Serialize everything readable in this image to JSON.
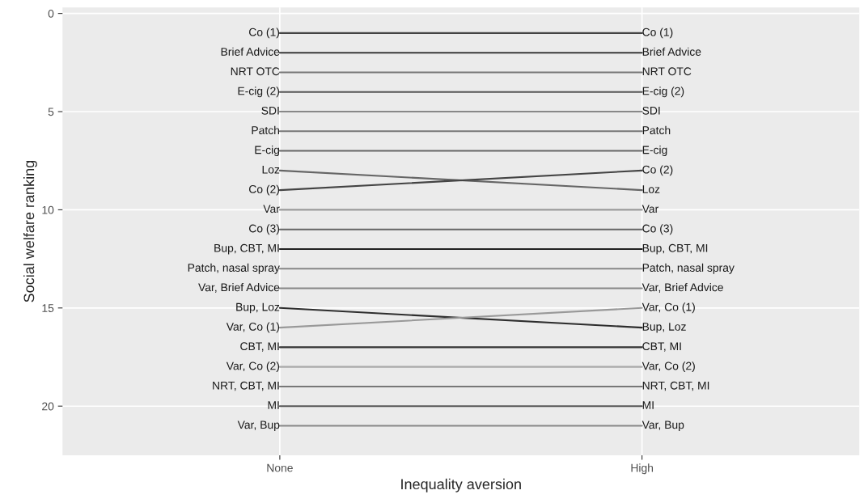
{
  "chart_data": {
    "type": "line",
    "xlabel": "Inequality aversion",
    "ylabel": "Social welfare ranking",
    "categories": [
      "None",
      "High"
    ],
    "ylim": [
      22.5,
      -0.3
    ],
    "yticks": [
      0,
      5,
      10,
      15,
      20
    ],
    "grid": true,
    "legend": false,
    "series": [
      {
        "name": "Co (1)",
        "color": "#444444",
        "values": [
          1,
          1
        ]
      },
      {
        "name": "Brief Advice",
        "color": "#3a3a3a",
        "values": [
          2,
          2
        ]
      },
      {
        "name": "NRT OTC",
        "color": "#777777",
        "values": [
          3,
          3
        ]
      },
      {
        "name": "E-cig (2)",
        "color": "#555555",
        "values": [
          4,
          4
        ]
      },
      {
        "name": "SDI",
        "color": "#888888",
        "values": [
          5,
          5
        ]
      },
      {
        "name": "Patch",
        "color": "#777777",
        "values": [
          6,
          6
        ]
      },
      {
        "name": "E-cig",
        "color": "#666666",
        "values": [
          7,
          7
        ]
      },
      {
        "name": "Loz",
        "color": "#666666",
        "values": [
          8,
          9
        ]
      },
      {
        "name": "Co (2)",
        "color": "#444444",
        "values": [
          9,
          8
        ]
      },
      {
        "name": "Var",
        "color": "#999999",
        "values": [
          10,
          10
        ]
      },
      {
        "name": "Co (3)",
        "color": "#666666",
        "values": [
          11,
          11
        ]
      },
      {
        "name": "Bup, CBT, MI",
        "color": "#222222",
        "values": [
          12,
          12
        ]
      },
      {
        "name": "Patch, nasal spray",
        "color": "#888888",
        "values": [
          13,
          13
        ]
      },
      {
        "name": "Var, Brief Advice",
        "color": "#888888",
        "values": [
          14,
          14
        ]
      },
      {
        "name": "Bup, Loz",
        "color": "#2e2e2e",
        "values": [
          15,
          16
        ]
      },
      {
        "name": "Var, Co (1)",
        "color": "#999999",
        "values": [
          16,
          15
        ]
      },
      {
        "name": "CBT, MI",
        "color": "#333333",
        "values": [
          17,
          17
        ]
      },
      {
        "name": "Var, Co (2)",
        "color": "#aaaaaa",
        "values": [
          18,
          18
        ]
      },
      {
        "name": "NRT, CBT, MI",
        "color": "#777777",
        "values": [
          19,
          19
        ]
      },
      {
        "name": "MI",
        "color": "#555555",
        "values": [
          20,
          20
        ]
      },
      {
        "name": "Var, Bup",
        "color": "#888888",
        "values": [
          21,
          21
        ]
      }
    ]
  }
}
